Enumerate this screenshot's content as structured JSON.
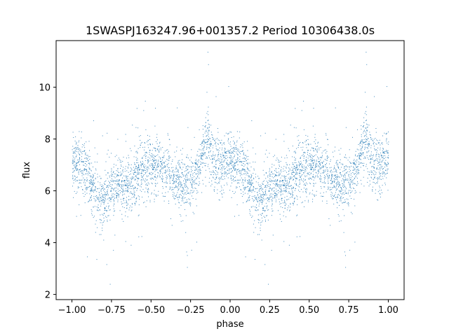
{
  "chart_data": {
    "type": "scatter",
    "title": "1SWASPJ163247.96+001357.2 Period 10306438.0s",
    "xlabel": "phase",
    "ylabel": "flux",
    "xlim": [
      -1.1,
      1.1
    ],
    "ylim": [
      1.8,
      11.8
    ],
    "xticks": [
      -1.0,
      -0.75,
      -0.5,
      -0.25,
      0.0,
      0.25,
      0.5,
      0.75,
      1.0
    ],
    "xtick_labels": [
      "−1.00",
      "−0.75",
      "−0.50",
      "−0.25",
      "0.00",
      "0.25",
      "0.50",
      "0.75",
      "1.00"
    ],
    "yticks": [
      2,
      4,
      6,
      8,
      10
    ],
    "ytick_labels": [
      "2",
      "4",
      "6",
      "8",
      "10"
    ],
    "grid": false,
    "marker_color": "#1f77b4",
    "phase_profile": [
      {
        "x": 0.0,
        "y": 7.2
      },
      {
        "x": 0.05,
        "y": 7.0
      },
      {
        "x": 0.1,
        "y": 6.5
      },
      {
        "x": 0.15,
        "y": 5.9
      },
      {
        "x": 0.2,
        "y": 5.6
      },
      {
        "x": 0.25,
        "y": 6.0
      },
      {
        "x": 0.3,
        "y": 6.2
      },
      {
        "x": 0.35,
        "y": 6.1
      },
      {
        "x": 0.4,
        "y": 6.6
      },
      {
        "x": 0.45,
        "y": 6.9
      },
      {
        "x": 0.5,
        "y": 7.0
      },
      {
        "x": 0.55,
        "y": 7.0
      },
      {
        "x": 0.6,
        "y": 6.7
      },
      {
        "x": 0.65,
        "y": 6.4
      },
      {
        "x": 0.7,
        "y": 6.3
      },
      {
        "x": 0.75,
        "y": 6.4
      },
      {
        "x": 0.8,
        "y": 6.9
      },
      {
        "x": 0.85,
        "y": 8.1
      },
      {
        "x": 0.9,
        "y": 7.1
      },
      {
        "x": 0.95,
        "y": 7.0
      },
      {
        "x": 1.0,
        "y": 7.2
      }
    ]
  }
}
